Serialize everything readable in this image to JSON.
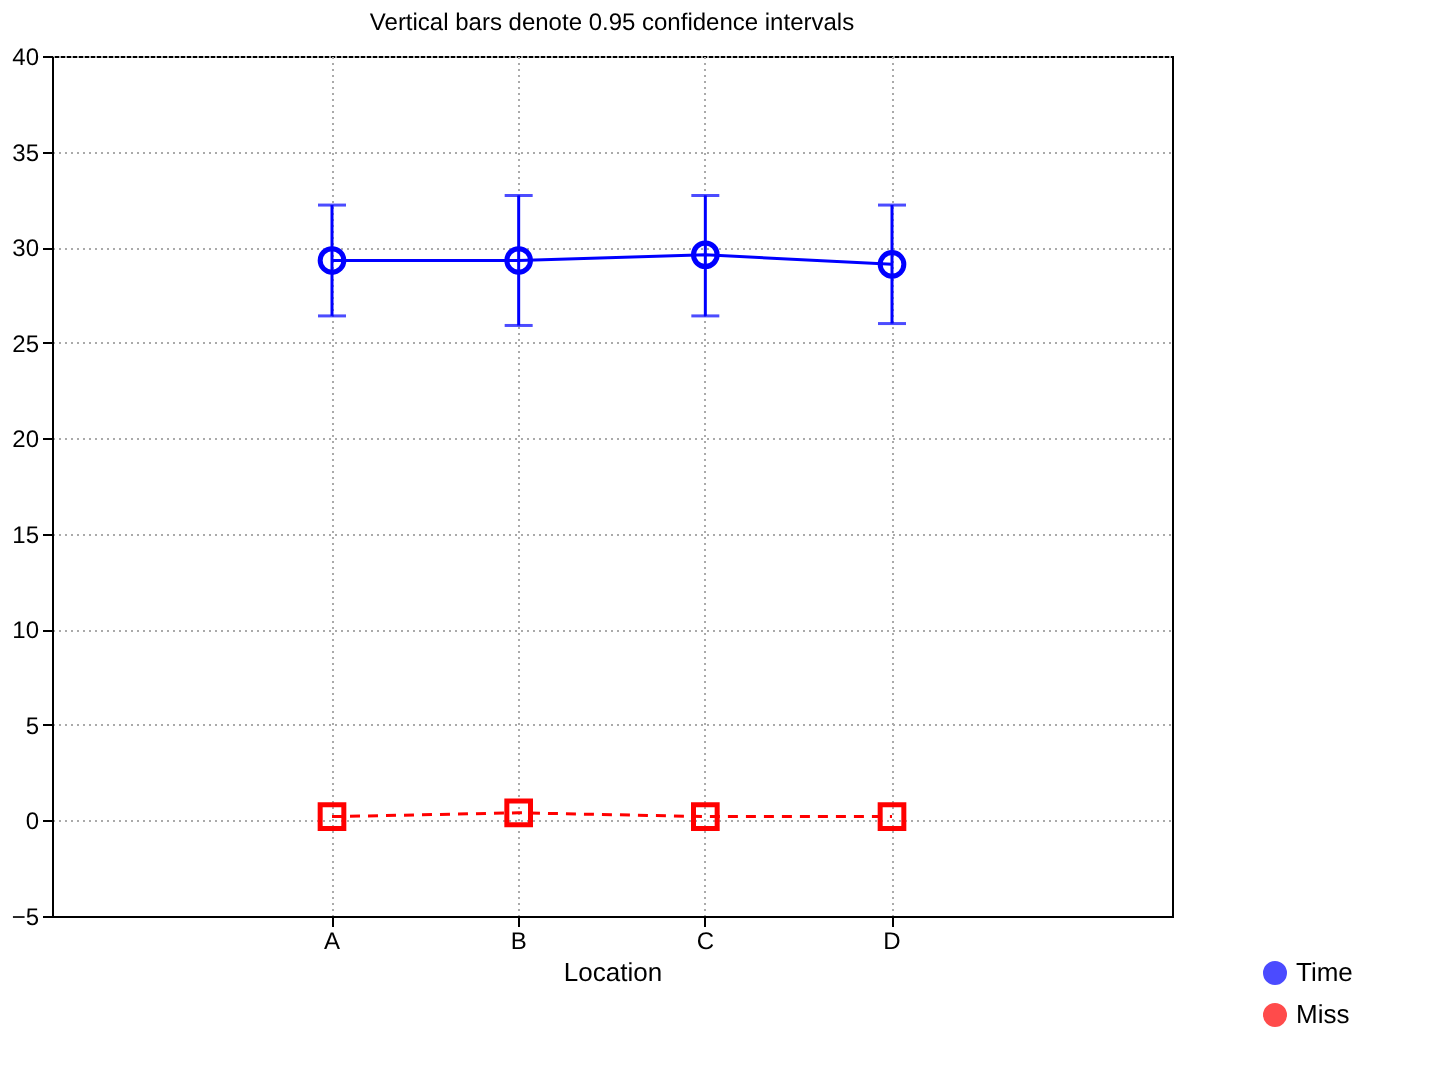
{
  "chart_data": {
    "type": "line",
    "title": "Vertical bars denote 0.95 confidence intervals",
    "xlabel": "Location",
    "categories": [
      "A",
      "B",
      "C",
      "D"
    ],
    "series": [
      {
        "name": "Time",
        "color": "#0000ff",
        "marker": "circle",
        "line_style": "solid",
        "values": [
          29.3,
          29.3,
          29.6,
          29.1
        ],
        "errors": [
          [
            26.4,
            32.2
          ],
          [
            25.9,
            32.7
          ],
          [
            26.4,
            32.7
          ],
          [
            26.0,
            32.2
          ]
        ]
      },
      {
        "name": "Miss",
        "color": "#ff0000",
        "marker": "square",
        "line_style": "dashed",
        "values": [
          0.2,
          0.4,
          0.2,
          0.2
        ]
      }
    ],
    "ylim": [
      -5,
      40
    ],
    "yticks": [
      -5,
      0,
      5,
      10,
      15,
      20,
      25,
      30,
      35,
      40
    ],
    "grid": true,
    "legend": "bottom right"
  }
}
